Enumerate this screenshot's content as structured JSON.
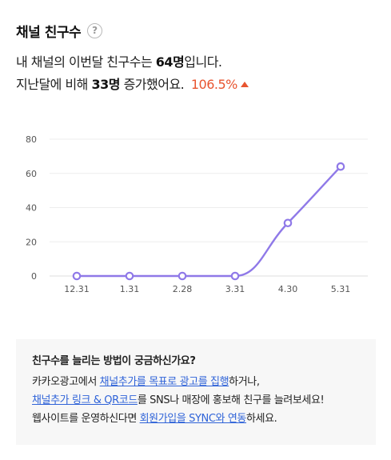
{
  "header": {
    "title": "채널 친구수",
    "help_icon_glyph": "?"
  },
  "summary": {
    "line1": {
      "prefix": "내 채널의 이번달 친구수는 ",
      "count": "64명",
      "suffix": "입니다."
    },
    "line2": {
      "prefix": "지난달에 비해 ",
      "diff": "33명",
      "middle": " 증가했어요. ",
      "percent": "106.5%",
      "trend_icon": "arrow-up-icon"
    }
  },
  "colors": {
    "accent_line": "#8f79e8",
    "increase": "#e8542f",
    "link": "#2f63d8",
    "info_bg": "#f7f7f7"
  },
  "chart_data": {
    "type": "line",
    "categories": [
      "12.31",
      "1.31",
      "2.28",
      "3.31",
      "4.30",
      "5.31"
    ],
    "values": [
      0,
      0,
      0,
      0,
      31,
      64
    ],
    "title": "",
    "xlabel": "",
    "ylabel": "",
    "ylim": [
      0,
      80
    ],
    "yticks": [
      "80",
      "60",
      "40",
      "20",
      "0"
    ],
    "grid": true,
    "legend": "none"
  },
  "info": {
    "title": "친구수를 늘리는 방법이 궁금하신가요?",
    "row1": {
      "text_before": "카카오광고에서 ",
      "link": "채널추가를 목표로 광고를 집행",
      "text_after": "하거나,"
    },
    "row2": {
      "link": "채널추가 링크 & QR코드",
      "text_after": "를 SNS나 매장에 홍보해 친구를 늘려보세요!"
    },
    "row3": {
      "text_before": "웹사이트를 운영하신다면 ",
      "link": "회원가입을 SYNC와 연동",
      "text_after": "하세요."
    }
  }
}
